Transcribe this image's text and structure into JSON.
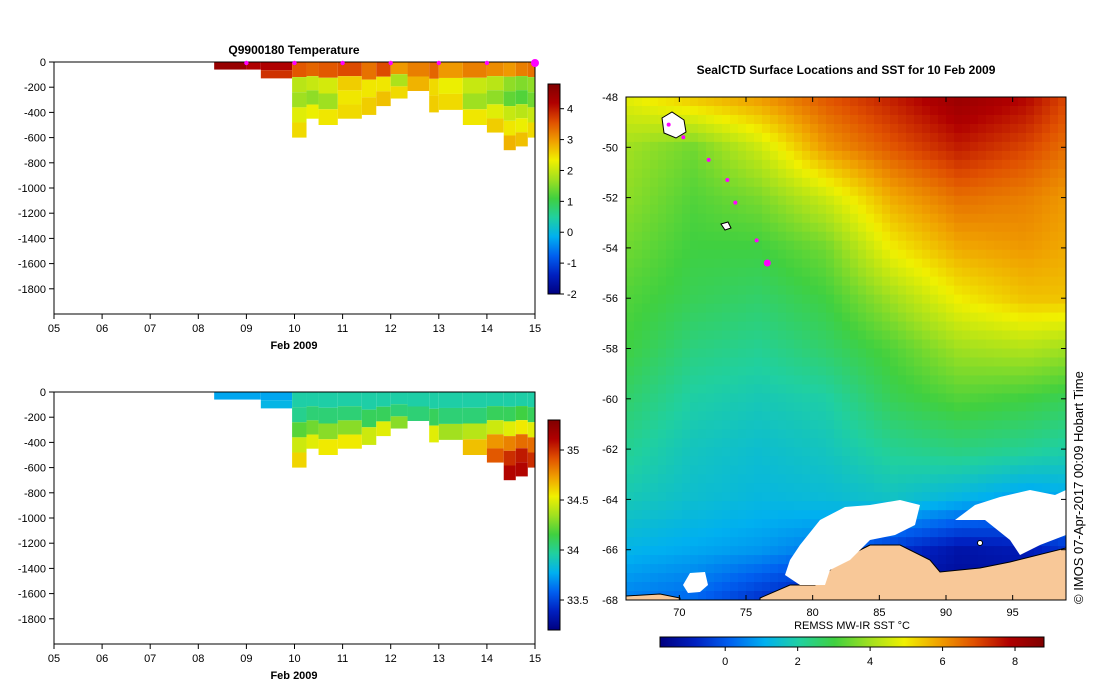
{
  "colors": {
    "land": "#f8c898",
    "marker": "#ff00ff",
    "frame": "#000000",
    "colormap": [
      "#000080",
      "#0020c0",
      "#0060f0",
      "#00b0f0",
      "#20d0a0",
      "#40d040",
      "#a0e020",
      "#f0f000",
      "#f0a000",
      "#e05000",
      "#b00000",
      "#800000"
    ]
  },
  "chart_data": [
    {
      "type": "heatmap",
      "title": "Q9900180  Temperature",
      "xlabel": "Feb 2009",
      "x_ticks": [
        "05",
        "06",
        "07",
        "08",
        "09",
        "10",
        "11",
        "12",
        "13",
        "14",
        "15"
      ],
      "x_tick_values": [
        5,
        6,
        7,
        8,
        9,
        10,
        11,
        12,
        13,
        14,
        15
      ],
      "xlim": [
        5,
        15
      ],
      "ylim": [
        0,
        -2000
      ],
      "y_ticks": [
        0,
        -200,
        -400,
        -600,
        -800,
        -1000,
        -1200,
        -1400,
        -1600,
        -1800
      ],
      "colorbar": {
        "range": [
          -2,
          4.8
        ],
        "ticks": [
          4,
          3,
          2,
          1,
          0,
          -1,
          -2
        ]
      },
      "surface_markers": [
        9,
        10,
        11,
        12,
        13,
        14,
        15
      ],
      "profiles": [
        {
          "x0": 8.33,
          "x1": 9.0,
          "max_depth": 60,
          "bands": [
            4.5
          ]
        },
        {
          "x0": 9.0,
          "x1": 9.3,
          "max_depth": 60,
          "bands": [
            4.2
          ]
        },
        {
          "x0": 9.3,
          "x1": 9.95,
          "max_depth": 130,
          "bands": [
            4.2,
            3.8
          ]
        },
        {
          "x0": 9.95,
          "x1": 10.25,
          "max_depth": 600,
          "bands": [
            3.5,
            1.9,
            1.7,
            2.2,
            2.5
          ]
        },
        {
          "x0": 10.25,
          "x1": 10.5,
          "max_depth": 450,
          "bands": [
            3.4,
            2.0,
            1.6,
            2.3
          ]
        },
        {
          "x0": 10.5,
          "x1": 10.9,
          "max_depth": 500,
          "bands": [
            3.5,
            2.1,
            1.7,
            2.4
          ]
        },
        {
          "x0": 10.9,
          "x1": 11.4,
          "max_depth": 450,
          "bands": [
            3.6,
            2.6,
            2.4,
            2.5
          ]
        },
        {
          "x0": 11.4,
          "x1": 11.7,
          "max_depth": 420,
          "bands": [
            3.3,
            2.4,
            2.6
          ]
        },
        {
          "x0": 11.7,
          "x1": 12.0,
          "max_depth": 350,
          "bands": [
            3.6,
            2.4,
            2.7
          ]
        },
        {
          "x0": 12.0,
          "x1": 12.35,
          "max_depth": 290,
          "bands": [
            3.0,
            1.8,
            2.5
          ]
        },
        {
          "x0": 12.35,
          "x1": 12.8,
          "max_depth": 230,
          "bands": [
            3.2,
            2.8
          ]
        },
        {
          "x0": 12.8,
          "x1": 13.0,
          "max_depth": 400,
          "bands": [
            3.4,
            2.5,
            2.6
          ]
        },
        {
          "x0": 13.0,
          "x1": 13.5,
          "max_depth": 380,
          "bands": [
            3.0,
            2.3,
            2.5
          ]
        },
        {
          "x0": 13.5,
          "x1": 14.0,
          "max_depth": 500,
          "bands": [
            3.2,
            2.0,
            1.7,
            2.4
          ]
        },
        {
          "x0": 14.0,
          "x1": 14.35,
          "max_depth": 560,
          "bands": [
            3.1,
            1.9,
            1.6,
            2.2,
            2.6
          ]
        },
        {
          "x0": 14.35,
          "x1": 14.6,
          "max_depth": 700,
          "bands": [
            3.0,
            1.6,
            1.3,
            2.0,
            2.4,
            2.8
          ]
        },
        {
          "x0": 14.6,
          "x1": 14.85,
          "max_depth": 670,
          "bands": [
            3.2,
            1.5,
            1.2,
            1.9,
            2.3,
            2.7
          ]
        },
        {
          "x0": 14.85,
          "x1": 15.0,
          "max_depth": 600,
          "bands": [
            3.3,
            1.6,
            1.4,
            2.0,
            2.5
          ]
        }
      ]
    },
    {
      "type": "heatmap",
      "xlabel": "Feb 2009",
      "x_ticks": [
        "05",
        "06",
        "07",
        "08",
        "09",
        "10",
        "11",
        "12",
        "13",
        "14",
        "15"
      ],
      "x_tick_values": [
        5,
        6,
        7,
        8,
        9,
        10,
        11,
        12,
        13,
        14,
        15
      ],
      "xlim": [
        5,
        15
      ],
      "ylim": [
        0,
        -2000
      ],
      "y_ticks": [
        0,
        -200,
        -400,
        -600,
        -800,
        -1000,
        -1200,
        -1400,
        -1600,
        -1800
      ],
      "colorbar": {
        "range": [
          33.2,
          35.3
        ],
        "ticks": [
          35,
          34.5,
          34,
          33.5
        ]
      },
      "profiles": [
        {
          "x0": 8.33,
          "x1": 9.3,
          "max_depth": 60,
          "bands": [
            33.75
          ]
        },
        {
          "x0": 9.3,
          "x1": 9.95,
          "max_depth": 130,
          "bands": [
            33.75,
            33.8
          ]
        },
        {
          "x0": 9.95,
          "x1": 10.25,
          "max_depth": 600,
          "bands": [
            33.95,
            34.0,
            34.2,
            34.45,
            34.6
          ]
        },
        {
          "x0": 10.25,
          "x1": 10.5,
          "max_depth": 450,
          "bands": [
            33.95,
            34.05,
            34.25,
            34.5
          ]
        },
        {
          "x0": 10.5,
          "x1": 10.9,
          "max_depth": 500,
          "bands": [
            33.95,
            34.05,
            34.3,
            34.55
          ]
        },
        {
          "x0": 10.9,
          "x1": 11.4,
          "max_depth": 450,
          "bands": [
            33.95,
            34.05,
            34.3,
            34.55
          ]
        },
        {
          "x0": 11.4,
          "x1": 11.7,
          "max_depth": 420,
          "bands": [
            33.95,
            34.1,
            34.45
          ]
        },
        {
          "x0": 11.7,
          "x1": 12.0,
          "max_depth": 350,
          "bands": [
            33.95,
            34.1,
            34.5
          ]
        },
        {
          "x0": 12.0,
          "x1": 12.35,
          "max_depth": 290,
          "bands": [
            33.95,
            34.05,
            34.3
          ]
        },
        {
          "x0": 12.35,
          "x1": 12.8,
          "max_depth": 230,
          "bands": [
            33.95,
            34.05
          ]
        },
        {
          "x0": 12.8,
          "x1": 13.0,
          "max_depth": 400,
          "bands": [
            33.95,
            34.1,
            34.5
          ]
        },
        {
          "x0": 13.0,
          "x1": 13.5,
          "max_depth": 380,
          "bands": [
            33.95,
            34.05,
            34.35
          ]
        },
        {
          "x0": 13.5,
          "x1": 14.0,
          "max_depth": 500,
          "bands": [
            33.95,
            34.05,
            34.4,
            34.65
          ]
        },
        {
          "x0": 14.0,
          "x1": 14.35,
          "max_depth": 560,
          "bands": [
            33.95,
            34.1,
            34.45,
            34.75,
            34.9
          ]
        },
        {
          "x0": 14.35,
          "x1": 14.6,
          "max_depth": 700,
          "bands": [
            33.95,
            34.1,
            34.5,
            34.8,
            35.0,
            35.1
          ]
        },
        {
          "x0": 14.6,
          "x1": 14.85,
          "max_depth": 670,
          "bands": [
            33.95,
            34.15,
            34.55,
            34.85,
            35.05,
            35.1
          ]
        },
        {
          "x0": 14.85,
          "x1": 15.0,
          "max_depth": 600,
          "bands": [
            33.95,
            34.1,
            34.5,
            34.85,
            35.0
          ]
        }
      ]
    },
    {
      "type": "heatmap",
      "title": "SealCTD Surface Locations and SST for 10 Feb 2009",
      "colorbar_label": "REMSS MW-IR SST °C",
      "side_label": "© IMOS 07-Apr-2017 00:09 Hobart Time",
      "xlim": [
        66,
        99
      ],
      "ylim": [
        -68,
        -48
      ],
      "x_ticks": [
        70,
        75,
        80,
        85,
        90,
        95
      ],
      "y_ticks": [
        -48,
        -50,
        -52,
        -54,
        -56,
        -58,
        -60,
        -62,
        -64,
        -66,
        -68
      ],
      "colorbar": {
        "range": [
          -1.8,
          8.8
        ],
        "ticks": [
          0,
          2,
          4,
          6,
          8
        ]
      },
      "sst_grid": {
        "lon": [
          66,
          71,
          76,
          81,
          86,
          91,
          96,
          99
        ],
        "lat": [
          -48,
          -50,
          -52,
          -54,
          -56,
          -58,
          -60,
          -62,
          -64,
          -66,
          -68
        ],
        "values": [
          [
            4.8,
            5.5,
            6.0,
            6.8,
            7.5,
            8.3,
            7.8,
            7.0
          ],
          [
            4.0,
            3.5,
            4.5,
            6.0,
            6.8,
            7.5,
            7.0,
            6.5
          ],
          [
            3.8,
            3.2,
            3.6,
            4.5,
            5.8,
            6.5,
            6.3,
            6.0
          ],
          [
            3.5,
            3.0,
            3.0,
            3.5,
            5.0,
            5.8,
            6.0,
            5.8
          ],
          [
            3.2,
            2.8,
            2.6,
            3.0,
            4.0,
            5.0,
            5.5,
            5.5
          ],
          [
            3.0,
            2.4,
            2.2,
            2.6,
            3.2,
            4.0,
            4.2,
            4.0
          ],
          [
            2.6,
            2.0,
            1.8,
            2.0,
            2.8,
            3.2,
            3.0,
            2.8
          ],
          [
            2.2,
            1.7,
            1.5,
            1.7,
            2.2,
            2.4,
            2.2,
            2.0
          ],
          [
            1.8,
            1.5,
            1.3,
            1.4,
            1.6,
            1.2,
            0.8,
            1.0
          ],
          [
            1.2,
            1.0,
            0.8,
            0.4,
            -0.5,
            -1.2,
            -1.0,
            -0.5
          ],
          [
            0.5,
            0.2,
            -0.6,
            -1.2,
            -1.5,
            -1.5,
            -1.4,
            -1.2
          ]
        ]
      },
      "seal_locations": [
        {
          "lon": 69.2,
          "lat": -49.1
        },
        {
          "lon": 70.3,
          "lat": -49.6
        },
        {
          "lon": 72.2,
          "lat": -50.5
        },
        {
          "lon": 73.6,
          "lat": -51.3
        },
        {
          "lon": 74.2,
          "lat": -52.2
        },
        {
          "lon": 75.8,
          "lat": -53.7
        },
        {
          "lon": 76.6,
          "lat": -54.6
        }
      ]
    }
  ]
}
